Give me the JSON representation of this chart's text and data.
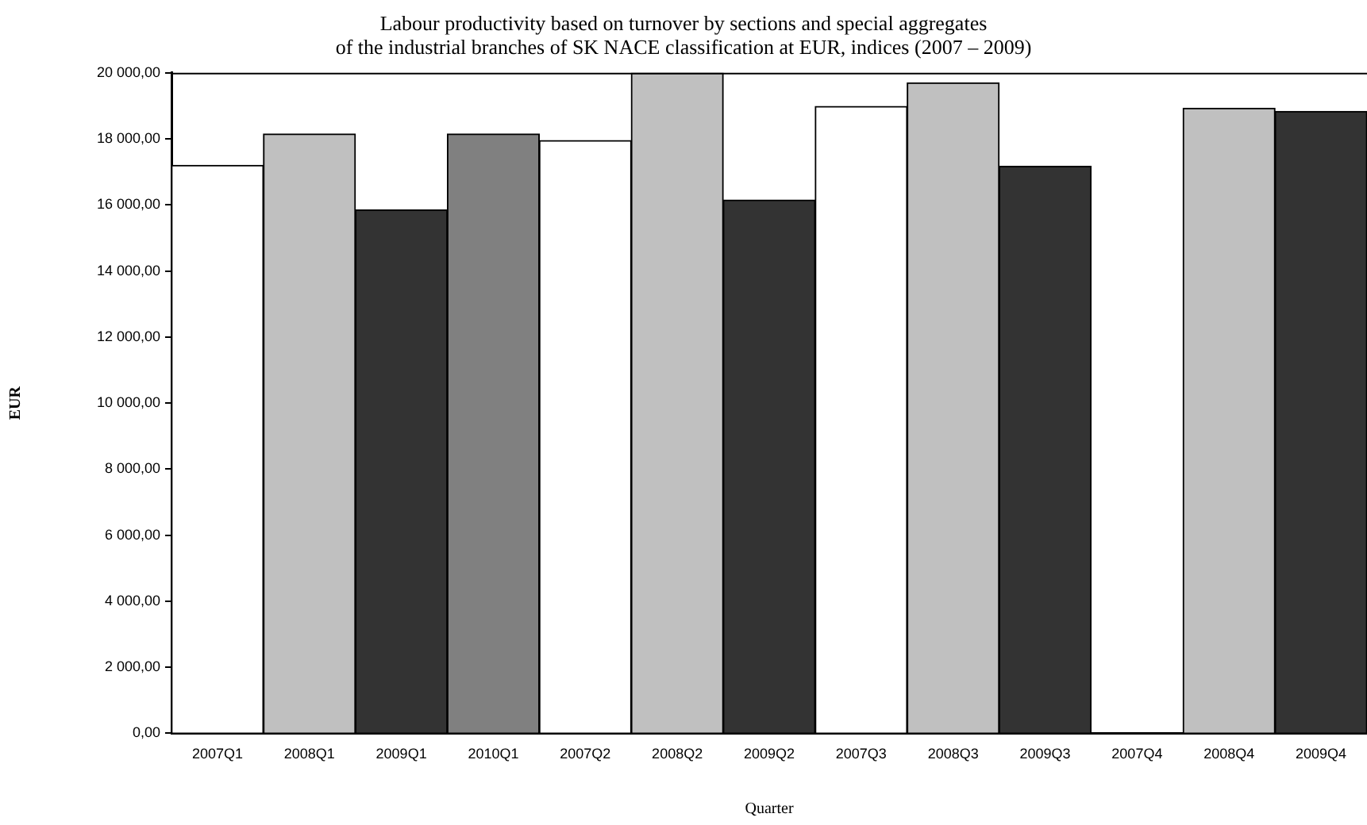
{
  "chart_data": {
    "type": "bar",
    "title": [
      "Labour productivity based on turnover by sections and special aggregates",
      "of the industrial branches of SK NACE classification at EUR, indices (2007 – 2009)"
    ],
    "xlabel": "Quarter",
    "ylabel": "EUR",
    "categories": [
      "2007Q1",
      "2008Q1",
      "2009Q1",
      "2010Q1",
      "2007Q2",
      "2008Q2",
      "2009Q2",
      "2007Q3",
      "2008Q3",
      "2009Q3",
      "2007Q4",
      "2008Q4",
      "2009Q4"
    ],
    "values": [
      17200,
      18150,
      15850,
      18150,
      17950,
      20000,
      16150,
      18980,
      19700,
      17170,
      null,
      18930,
      18830
    ],
    "colors": [
      "#ffffff",
      "#c0c0c0",
      "#333333",
      "#808080",
      "#ffffff",
      "#c0c0c0",
      "#333333",
      "#ffffff",
      "#c0c0c0",
      "#333333",
      "#ffffff",
      "#c0c0c0",
      "#333333"
    ],
    "ylim": [
      0,
      20000
    ],
    "yticks": [
      {
        "value": 0,
        "label": "0,00"
      },
      {
        "value": 2000,
        "label": "2 000,00"
      },
      {
        "value": 4000,
        "label": "4 000,00"
      },
      {
        "value": 6000,
        "label": "6 000,00"
      },
      {
        "value": 8000,
        "label": "8 000,00"
      },
      {
        "value": 10000,
        "label": "10 000,00"
      },
      {
        "value": 12000,
        "label": "12 000,00"
      },
      {
        "value": 14000,
        "label": "14 000,00"
      },
      {
        "value": 16000,
        "label": "16 000,00"
      },
      {
        "value": 18000,
        "label": "18 000,00"
      },
      {
        "value": 20000,
        "label": "20 000,00"
      }
    ],
    "grid": false,
    "legend": false
  }
}
